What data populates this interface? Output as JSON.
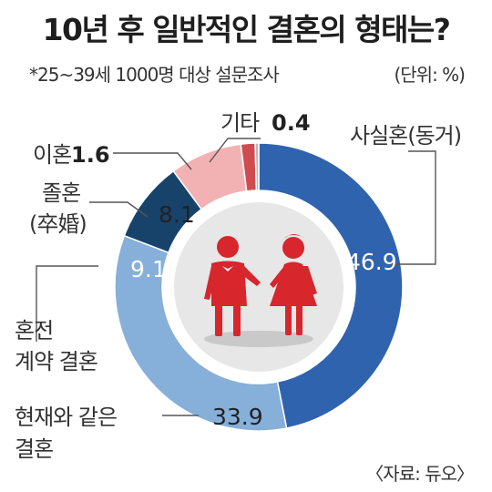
{
  "chart_data": {
    "type": "pie",
    "title": "10년 후 일반적인 결혼의 형태는?",
    "subtitle": "*25~39세 1000명 대상 설문조사",
    "unit": "(단위: %)",
    "source": "〈자료: 듀오〉",
    "slices": [
      {
        "name": "사실혼(동거)",
        "value": 46.9,
        "display": "46.9",
        "color": "#2f63ad"
      },
      {
        "name": "현재와 같은 결혼",
        "value": 33.9,
        "display": "33.9",
        "color": "#86afd9"
      },
      {
        "name": "혼전 계약 결혼",
        "value": 9.1,
        "display": "9.1",
        "color": "#17436b"
      },
      {
        "name": "졸혼 (卒婚)",
        "value": 8.1,
        "display": "8.1",
        "color": "#f2b2b4"
      },
      {
        "name": "이혼",
        "value": 1.6,
        "display": "1.6",
        "color": "#cf4b50"
      },
      {
        "name": "기타",
        "value": 0.4,
        "display": "0.4",
        "color": "#b9b9b9"
      }
    ]
  },
  "labels": {
    "sasilhon": "사실혼(동거)",
    "hyeonjae_1": "현재와 같은",
    "hyeonjae_2": "결혼",
    "honjeon_1": "혼전",
    "honjeon_2": "계약 결혼",
    "jolhon_1": "졸혼",
    "jolhon_2": "(卒婚)",
    "ihon_name": "이혼",
    "gita_name": "기타"
  },
  "colors": {
    "center_bg": "#e7e7e7",
    "figure": "#d7262c",
    "leader": "#555555"
  }
}
